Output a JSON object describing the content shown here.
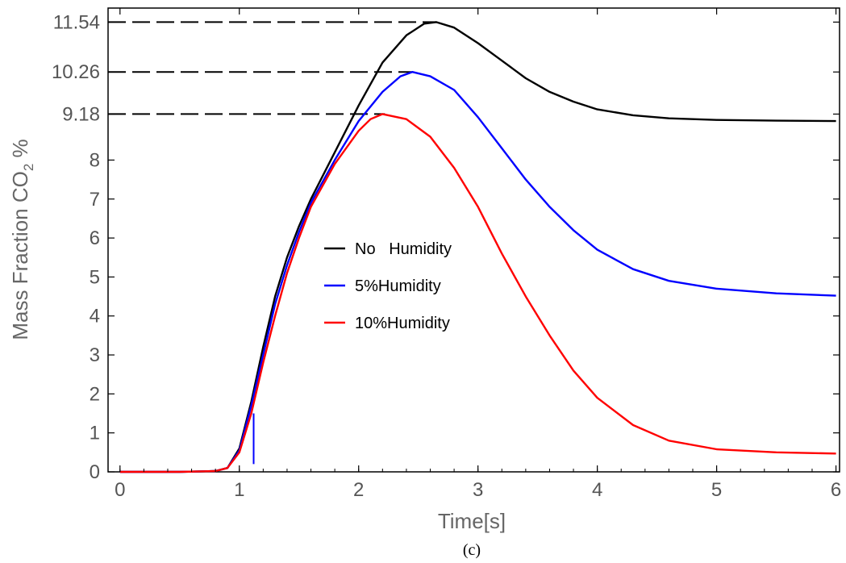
{
  "chart_data": {
    "type": "line",
    "xlabel": "Time[s]",
    "ylabel_main": "Mass Fraction CO",
    "ylabel_sub": "2",
    "ylabel_suffix": " %",
    "caption": "(c)",
    "xlim": [
      -0.1,
      6.03
    ],
    "ylim": [
      0,
      11.9
    ],
    "xticks": [
      "0",
      "1",
      "2",
      "3",
      "4",
      "5",
      "6"
    ],
    "yticks": [
      {
        "value": 0,
        "label": "0"
      },
      {
        "value": 1,
        "label": "1"
      },
      {
        "value": 2,
        "label": "2"
      },
      {
        "value": 3,
        "label": "3"
      },
      {
        "value": 4,
        "label": "4"
      },
      {
        "value": 5,
        "label": "5"
      },
      {
        "value": 6,
        "label": "6"
      },
      {
        "value": 7,
        "label": "7"
      },
      {
        "value": 8,
        "label": "8"
      },
      {
        "value": 9.18,
        "label": "9.18"
      },
      {
        "value": 10.26,
        "label": "10.26"
      },
      {
        "value": 11.54,
        "label": "11.54"
      }
    ],
    "legend_position": "center",
    "series": [
      {
        "name": "No   Humidity",
        "color": "#000000",
        "peak": 11.54,
        "points": [
          [
            0,
            0
          ],
          [
            0.5,
            0
          ],
          [
            0.8,
            0.02
          ],
          [
            0.9,
            0.1
          ],
          [
            1.0,
            0.6
          ],
          [
            1.1,
            1.8
          ],
          [
            1.2,
            3.2
          ],
          [
            1.3,
            4.5
          ],
          [
            1.4,
            5.5
          ],
          [
            1.5,
            6.3
          ],
          [
            1.6,
            7.0
          ],
          [
            1.8,
            8.2
          ],
          [
            2.0,
            9.4
          ],
          [
            2.2,
            10.5
          ],
          [
            2.4,
            11.2
          ],
          [
            2.55,
            11.5
          ],
          [
            2.65,
            11.54
          ],
          [
            2.8,
            11.4
          ],
          [
            3.0,
            11.0
          ],
          [
            3.2,
            10.55
          ],
          [
            3.4,
            10.1
          ],
          [
            3.6,
            9.75
          ],
          [
            3.8,
            9.5
          ],
          [
            4.0,
            9.3
          ],
          [
            4.3,
            9.15
          ],
          [
            4.6,
            9.07
          ],
          [
            5.0,
            9.03
          ],
          [
            5.5,
            9.01
          ],
          [
            6.0,
            9.0
          ]
        ]
      },
      {
        "name": "5%Humidity",
        "color": "#0000ff",
        "peak": 10.26,
        "points": [
          [
            0,
            0
          ],
          [
            0.5,
            0
          ],
          [
            0.8,
            0.02
          ],
          [
            0.9,
            0.1
          ],
          [
            1.0,
            0.55
          ],
          [
            1.1,
            1.7
          ],
          [
            1.2,
            3.0
          ],
          [
            1.3,
            4.3
          ],
          [
            1.4,
            5.3
          ],
          [
            1.5,
            6.15
          ],
          [
            1.6,
            6.9
          ],
          [
            1.8,
            8.0
          ],
          [
            2.0,
            9.0
          ],
          [
            2.2,
            9.75
          ],
          [
            2.35,
            10.15
          ],
          [
            2.45,
            10.26
          ],
          [
            2.6,
            10.15
          ],
          [
            2.8,
            9.8
          ],
          [
            3.0,
            9.1
          ],
          [
            3.2,
            8.3
          ],
          [
            3.4,
            7.5
          ],
          [
            3.6,
            6.8
          ],
          [
            3.8,
            6.2
          ],
          [
            4.0,
            5.7
          ],
          [
            4.3,
            5.2
          ],
          [
            4.6,
            4.9
          ],
          [
            5.0,
            4.7
          ],
          [
            5.5,
            4.58
          ],
          [
            6.0,
            4.52
          ]
        ]
      },
      {
        "name": "10%Humidity",
        "color": "#ff0000",
        "peak": 9.18,
        "points": [
          [
            0,
            0
          ],
          [
            0.5,
            0
          ],
          [
            0.8,
            0.02
          ],
          [
            0.9,
            0.1
          ],
          [
            1.0,
            0.5
          ],
          [
            1.1,
            1.5
          ],
          [
            1.2,
            2.8
          ],
          [
            1.3,
            4.0
          ],
          [
            1.4,
            5.1
          ],
          [
            1.5,
            6.0
          ],
          [
            1.6,
            6.8
          ],
          [
            1.8,
            7.9
          ],
          [
            2.0,
            8.75
          ],
          [
            2.1,
            9.05
          ],
          [
            2.2,
            9.18
          ],
          [
            2.4,
            9.05
          ],
          [
            2.6,
            8.6
          ],
          [
            2.8,
            7.8
          ],
          [
            3.0,
            6.8
          ],
          [
            3.2,
            5.6
          ],
          [
            3.4,
            4.5
          ],
          [
            3.6,
            3.5
          ],
          [
            3.8,
            2.6
          ],
          [
            4.0,
            1.9
          ],
          [
            4.3,
            1.2
          ],
          [
            4.6,
            0.8
          ],
          [
            5.0,
            0.58
          ],
          [
            5.5,
            0.5
          ],
          [
            6.0,
            0.47
          ]
        ]
      }
    ],
    "spike": {
      "color": "#0000ff",
      "x": 1.12,
      "y0": 0.2,
      "y1": 1.5
    },
    "reference_lines": [
      {
        "value": 11.54,
        "x_end": 2.65
      },
      {
        "value": 10.26,
        "x_end": 2.45
      },
      {
        "value": 9.18,
        "x_end": 2.22
      }
    ]
  }
}
